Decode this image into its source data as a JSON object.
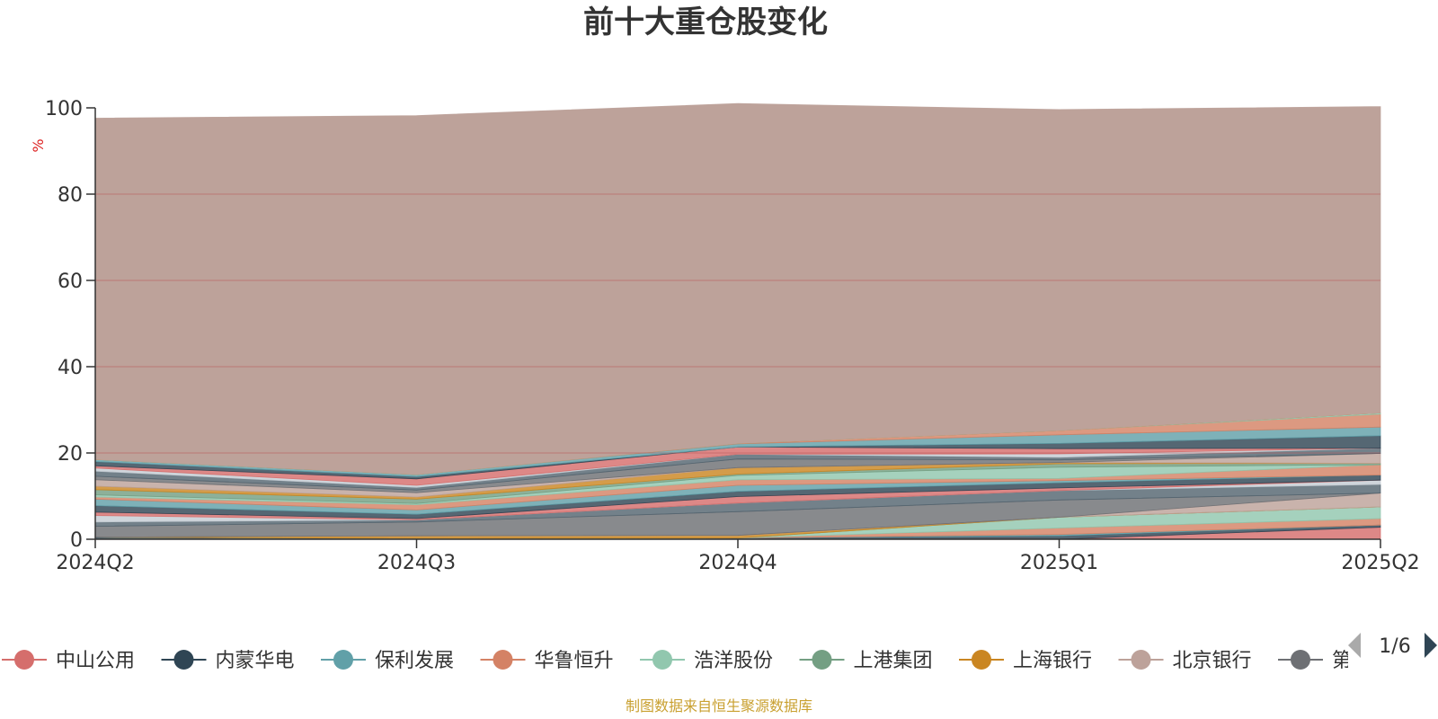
{
  "chart_data": {
    "type": "area",
    "title": "前十大重仓股变化",
    "ylabel": "%",
    "ylim": [
      0,
      100
    ],
    "yticks": [
      "0",
      "20",
      "40",
      "60",
      "80",
      "100"
    ],
    "categories": [
      "2024Q2",
      "2024Q3",
      "2024Q4",
      "2025Q1",
      "2025Q2"
    ],
    "grid": true,
    "stacked": true,
    "series": [
      {
        "name": "中山公用",
        "values": [
          0,
          0,
          0,
          0,
          2.8
        ]
      },
      {
        "name": "内蒙华电",
        "values": [
          0.5,
          0.2,
          0.3,
          0.8,
          0.5
        ]
      },
      {
        "name": "保利发展",
        "values": [
          0,
          0,
          0,
          0.3,
          0
        ]
      },
      {
        "name": "华鲁恒升",
        "values": [
          0,
          0,
          0,
          1.5,
          1.5
        ]
      },
      {
        "name": "浩洋股份",
        "values": [
          0,
          0,
          0,
          2.5,
          2.7
        ]
      },
      {
        "name": "上港集团",
        "values": [
          0,
          0,
          0,
          0,
          0
        ]
      },
      {
        "name": "上海银行",
        "values": [
          0,
          0.6,
          0.6,
          0,
          0
        ]
      },
      {
        "name": "北京银行",
        "values": [
          0,
          0,
          0,
          0,
          3.2
        ]
      },
      {
        "name": null,
        "values": [
          2.5,
          3.2,
          5.5,
          4.0,
          0
        ]
      },
      {
        "name": null,
        "values": [
          1.0,
          0.5,
          2.0,
          2.2,
          2.0
        ]
      },
      {
        "name": null,
        "values": [
          1.5,
          0,
          0,
          0,
          1.0
        ]
      },
      {
        "name": null,
        "values": [
          0.8,
          0.3,
          1.5,
          0.6,
          0
        ]
      },
      {
        "name": null,
        "values": [
          1.5,
          1.0,
          1.2,
          1.2,
          1.2
        ]
      },
      {
        "name": null,
        "values": [
          1.5,
          1.0,
          1.4,
          0.5,
          0
        ]
      },
      {
        "name": null,
        "values": [
          0.5,
          1.2,
          1.3,
          0.5,
          2.4
        ]
      },
      {
        "name": null,
        "values": [
          0.5,
          0.3,
          1.0,
          2.6,
          0
        ]
      },
      {
        "name": null,
        "values": [
          1.2,
          1.0,
          0.3,
          0.8,
          0.3
        ]
      },
      {
        "name": null,
        "values": [
          0.8,
          0.5,
          1.5,
          0.3,
          0
        ]
      },
      {
        "name": null,
        "values": [
          1.5,
          1.0,
          0,
          0,
          2.3
        ]
      },
      {
        "name": null,
        "values": [
          0.8,
          0.6,
          2.0,
          0.6,
          0
        ]
      },
      {
        "name": null,
        "values": [
          1.2,
          0.6,
          1.1,
          0.6,
          1.2
        ]
      },
      {
        "name": null,
        "values": [
          0.7,
          0.5,
          0,
          0.8,
          0
        ]
      },
      {
        "name": null,
        "values": [
          0.5,
          1.5,
          1.7,
          1.2,
          0
        ]
      },
      {
        "name": null,
        "values": [
          1.0,
          0.5,
          0,
          1.2,
          2.9
        ]
      },
      {
        "name": null,
        "values": [
          0.5,
          0.5,
          0.7,
          2.0,
          2.0
        ]
      },
      {
        "name": null,
        "values": [
          0,
          0,
          0.1,
          1.0,
          3.0
        ]
      },
      {
        "name": null,
        "values": [
          0,
          0,
          0,
          0,
          0.3
        ]
      },
      {
        "name": null,
        "values": [
          0,
          0,
          0,
          0,
          0
        ]
      },
      {
        "name": null,
        "values": [
          0,
          0,
          0,
          0,
          0
        ]
      },
      {
        "name": null,
        "values": [
          79.1,
          83.2,
          78.8,
          74.4,
          71.0
        ]
      }
    ]
  },
  "legend": {
    "items": [
      "中山公用",
      "内蒙华电",
      "保利发展",
      "华鲁恒升",
      "浩洋股份",
      "上港集团",
      "上海银行",
      "北京银行",
      "第"
    ],
    "page": "1/6"
  },
  "colors": {
    "palette": [
      "#d56e6c",
      "#2f4554",
      "#61a0a8",
      "#d48265",
      "#91c7ae",
      "#749f83",
      "#ca8622",
      "#bda29a",
      "#6e7074",
      "#546570",
      "#c4ccd3"
    ],
    "area_opacity": 0.82,
    "title": "#333333",
    "unit": "#dd2222",
    "grid": "#b85555",
    "source": "#c9a030",
    "pager_active": "#2f4554",
    "pager_inactive": "#aaaaaa"
  },
  "footer": {
    "source": "制图数据来自恒生聚源数据库"
  }
}
